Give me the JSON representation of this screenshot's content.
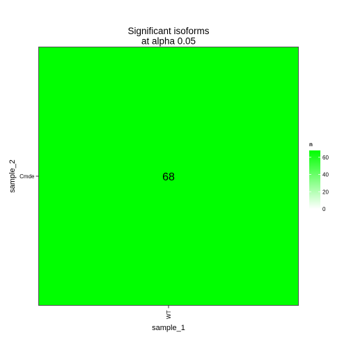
{
  "chart_data": {
    "type": "heatmap",
    "title_lines": [
      "Significant isoforms",
      "at alpha 0.05"
    ],
    "x": [
      "WT"
    ],
    "y": [
      "Cmde"
    ],
    "values": [
      [
        68
      ]
    ],
    "cell_labels": [
      [
        "68"
      ]
    ],
    "xlabel": "sample_1",
    "ylabel": "sample_2",
    "legend": {
      "title": "n",
      "position": "right",
      "range": [
        0,
        68
      ],
      "ticks": [
        0,
        20,
        40,
        60
      ],
      "tick_labels": [
        "0",
        "20",
        "40",
        "60"
      ],
      "low_color": "#ffffff",
      "high_color": "#00ff00"
    },
    "grid": false,
    "border_color": "#4d4d4d"
  }
}
